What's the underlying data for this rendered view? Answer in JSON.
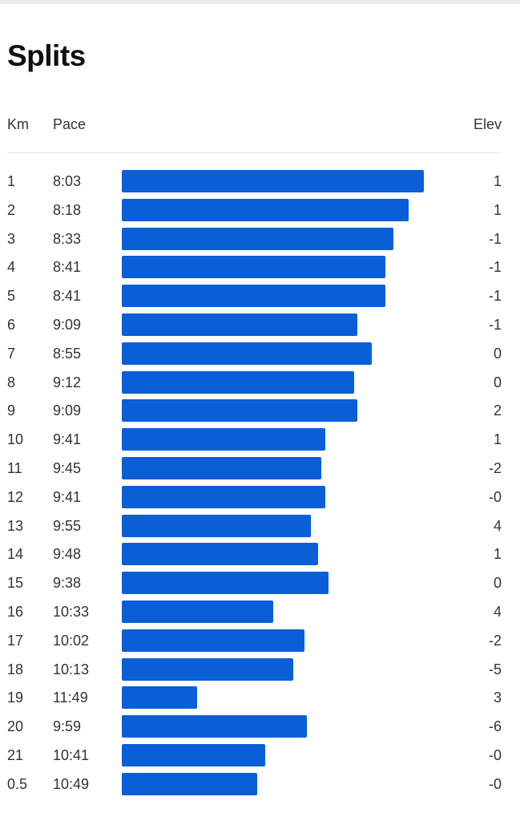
{
  "header": {
    "title": "Splits",
    "col_km": "Km",
    "col_pace": "Pace",
    "col_elev": "Elev"
  },
  "colors": {
    "bar": "#0a5fd6"
  },
  "chart_data": {
    "type": "bar",
    "orientation": "horizontal",
    "title": "Splits",
    "categories": [
      "1",
      "2",
      "3",
      "4",
      "5",
      "6",
      "7",
      "8",
      "9",
      "10",
      "11",
      "12",
      "13",
      "14",
      "15",
      "16",
      "17",
      "18",
      "19",
      "20",
      "21",
      "0.5"
    ],
    "pace": [
      "8:03",
      "8:18",
      "8:33",
      "8:41",
      "8:41",
      "9:09",
      "8:55",
      "9:12",
      "9:09",
      "9:41",
      "9:45",
      "9:41",
      "9:55",
      "9:48",
      "9:38",
      "10:33",
      "10:02",
      "10:13",
      "11:49",
      "9:59",
      "10:41",
      "10:49"
    ],
    "elev": [
      "1",
      "1",
      "-1",
      "-1",
      "-1",
      "-1",
      "0",
      "0",
      "2",
      "1",
      "-2",
      "-0",
      "4",
      "1",
      "0",
      "4",
      "-2",
      "-5",
      "3",
      "-6",
      "-0",
      "-0"
    ],
    "pace_seconds": [
      483,
      498,
      513,
      521,
      521,
      549,
      535,
      552,
      549,
      581,
      585,
      581,
      595,
      588,
      578,
      633,
      602,
      613,
      709,
      599,
      641,
      649
    ],
    "bar_scale": "faster pace = longer bar"
  }
}
